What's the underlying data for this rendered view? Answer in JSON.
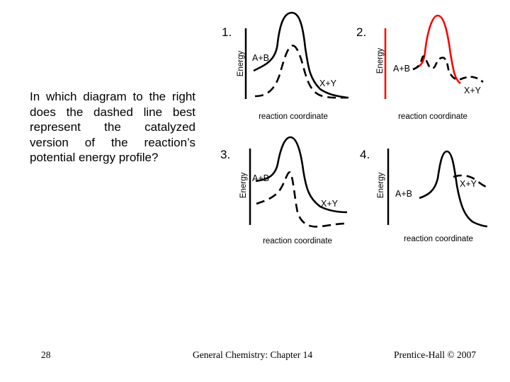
{
  "question": "In which diagram to the right does the dashed line best represent the catalyzed version of the reaction’s potential energy profile?",
  "diagrams": [
    {
      "number": "1.",
      "y_label": "Energy",
      "x_label": "reaction coordinate",
      "reactant_label": "A+B",
      "product_label": "X+Y"
    },
    {
      "number": "2.",
      "y_label": "Energy",
      "x_label": "reaction coordinate",
      "reactant_label": "A+B",
      "product_label": "X+Y"
    },
    {
      "number": "3.",
      "y_label": "Energy",
      "x_label": "reaction coordinate",
      "reactant_label": "A+B",
      "product_label": "X+Y"
    },
    {
      "number": "4.",
      "y_label": "Energy",
      "x_label": "reaction coordinate",
      "reactant_label": "A+B",
      "product_label": "X+Y"
    }
  ],
  "colors": {
    "diagram_2_accent": "#ff0000",
    "curve": "#000000"
  },
  "footer": {
    "slide_number": "28",
    "course": "General Chemistry: Chapter 14",
    "copyright": "Prentice-Hall © 2007"
  }
}
